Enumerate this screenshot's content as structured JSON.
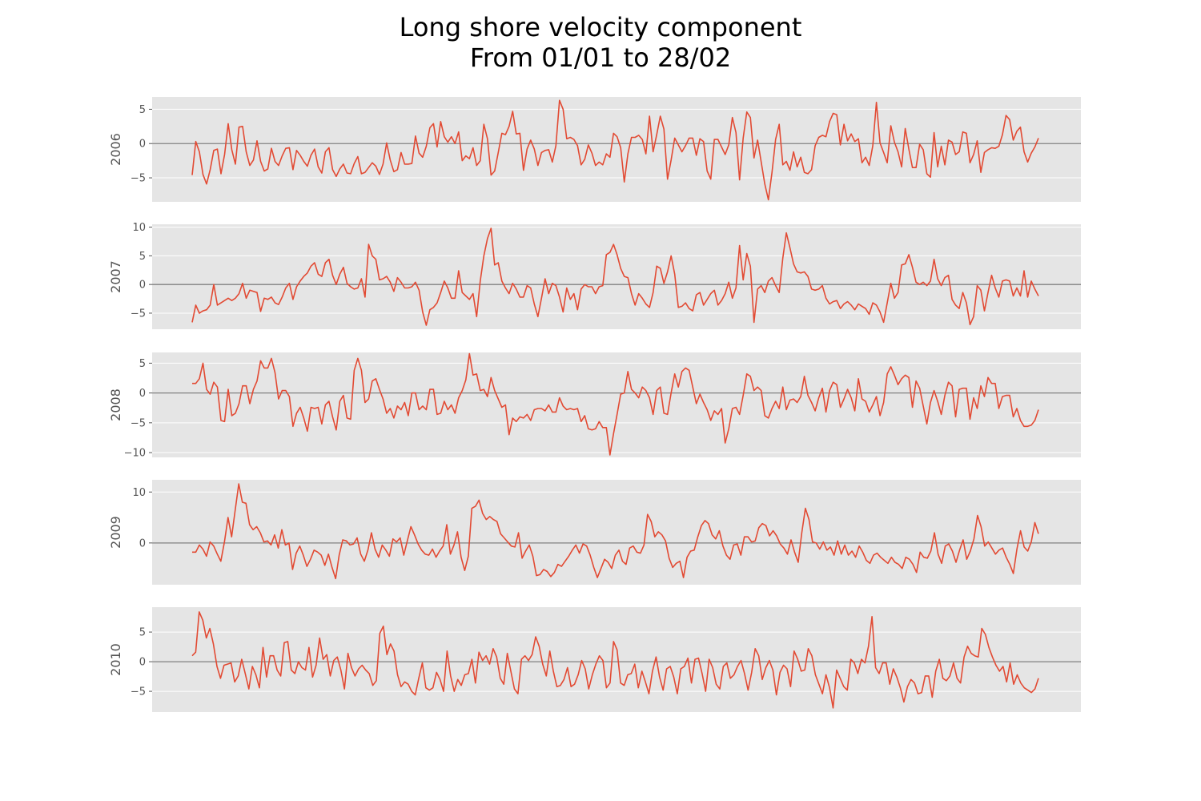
{
  "title": "Long shore velocity component",
  "subtitle": "From 01/01 to 28/02",
  "colors": {
    "line": "#E24A33",
    "panel_background": "#E5E5E5",
    "grid": "#FFFFFF",
    "zero_line": "#808080",
    "tick_text": "#555555"
  },
  "chart_data": [
    {
      "type": "line",
      "ylabel": "2006",
      "ylim": [
        -8.5,
        6.8
      ],
      "yticks": [
        -5,
        0,
        5
      ],
      "ytick_labels": [
        "−5",
        "0",
        "5"
      ],
      "grid": true,
      "values": [
        -4.6,
        0.3,
        -1.2,
        -4.5,
        -5.9,
        -3.8,
        -1.0,
        -0.8,
        -4.4,
        -1.6,
        2.9,
        -0.9,
        -3.0,
        2.4,
        2.5,
        -1.2,
        -3.2,
        -2.4,
        0.4,
        -2.6,
        -4.0,
        -3.7,
        -0.7,
        -2.6,
        -3.2,
        -1.8,
        -0.7,
        -0.6,
        -3.8,
        -1.0,
        -1.7,
        -2.6,
        -3.3,
        -1.7,
        -0.8,
        -3.4,
        -4.3,
        -1.2,
        -0.6,
        -3.8,
        -4.8,
        -3.7,
        -3.0,
        -4.3,
        -4.4,
        -2.9,
        -1.9,
        -4.4,
        -4.2,
        -3.5,
        -2.8,
        -3.3,
        -4.5,
        -3.0,
        0.1,
        -2.4,
        -4.1,
        -3.8,
        -1.3,
        -3.0,
        -3.0,
        -2.9,
        1.1,
        -1.4,
        -2.0,
        -0.4,
        2.3,
        2.9,
        -0.5,
        3.2,
        1.0,
        0.2,
        1.0,
        0.0,
        1.7,
        -2.5,
        -1.8,
        -2.2,
        -0.6,
        -3.2,
        -2.5,
        2.8,
        0.7,
        -4.6,
        -4.0,
        -1.3,
        1.5,
        1.3,
        2.5,
        4.7,
        1.4,
        1.5,
        -3.9,
        -0.8,
        0.5,
        -0.8,
        -3.2,
        -1.3,
        -1.0,
        -0.9,
        -2.7,
        -0.3,
        6.3,
        5.0,
        0.7,
        0.9,
        0.6,
        -0.3,
        -3.1,
        -2.3,
        -0.2,
        -1.4,
        -3.2,
        -2.7,
        -3.1,
        -1.5,
        -2.0,
        1.5,
        1.0,
        -0.6,
        -5.6,
        -1.5,
        0.9,
        0.9,
        1.2,
        0.6,
        -1.5,
        4.0,
        -1.2,
        1.3,
        4.0,
        2.1,
        -5.2,
        -2.4,
        0.8,
        -0.2,
        -1.2,
        -0.3,
        0.8,
        0.8,
        -1.7,
        0.7,
        0.3,
        -4.0,
        -5.2,
        0.6,
        0.6,
        -0.5,
        -1.6,
        -0.2,
        3.8,
        1.6,
        -5.3,
        0.8,
        4.6,
        3.8,
        -2.1,
        0.5,
        -2.7,
        -5.9,
        -8.2,
        -4.2,
        0.6,
        2.8,
        -3.1,
        -2.6,
        -3.9,
        -1.2,
        -3.4,
        -2.0,
        -4.2,
        -4.4,
        -3.8,
        -0.3,
        0.9,
        1.2,
        1.0,
        3.2,
        4.4,
        4.2,
        -0.2,
        2.8,
        0.4,
        1.4,
        0.3,
        0.7,
        -2.8,
        -2.0,
        -3.2,
        -0.3,
        6.0,
        0.1,
        -1.3,
        -2.8,
        2.6,
        0.2,
        -1.2,
        -3.4,
        2.2,
        -0.8,
        -3.5,
        -3.5,
        -0.1,
        -0.9,
        -4.4,
        -4.9,
        1.6,
        -3.4,
        -0.4,
        -3.1,
        0.5,
        0.2,
        -1.6,
        -1.2,
        1.7,
        1.5,
        -2.8,
        -1.6,
        0.4,
        -4.2,
        -1.3,
        -0.9,
        -0.6,
        -0.7,
        -0.4,
        1.3,
        4.1,
        3.5,
        0.5,
        1.8,
        2.4,
        -1.2,
        -2.7,
        -1.4,
        -0.5,
        0.8
      ]
    },
    {
      "type": "line",
      "ylabel": "2007",
      "ylim": [
        -7.8,
        10.5
      ],
      "yticks": [
        -5,
        0,
        5,
        10
      ],
      "ytick_labels": [
        "−5",
        "0",
        "5",
        "10"
      ],
      "grid": true,
      "values": [
        -6.6,
        -3.6,
        -5.0,
        -4.6,
        -4.4,
        -3.6,
        0.0,
        -3.6,
        -3.2,
        -2.8,
        -2.4,
        -2.8,
        -2.4,
        -1.6,
        0.2,
        -2.4,
        -1.0,
        -1.2,
        -1.4,
        -4.7,
        -2.4,
        -2.6,
        -2.2,
        -3.2,
        -3.5,
        -2.2,
        -0.6,
        0.2,
        -2.6,
        -0.4,
        0.6,
        1.4,
        2.0,
        3.2,
        3.8,
        1.8,
        1.4,
        3.8,
        4.4,
        1.6,
        0.0,
        1.8,
        3.0,
        0.2,
        -0.4,
        -0.8,
        -0.6,
        1.0,
        -2.2,
        7.0,
        5.0,
        4.4,
        0.8,
        1.0,
        1.4,
        0.4,
        -1.2,
        1.2,
        0.4,
        -0.6,
        -0.6,
        -0.4,
        0.4,
        -1.0,
        -4.8,
        -7.1,
        -4.4,
        -4.0,
        -3.2,
        -1.4,
        0.6,
        -0.6,
        -2.4,
        -2.4,
        2.4,
        -1.4,
        -2.0,
        -2.6,
        -1.6,
        -5.6,
        0.6,
        5.0,
        8.0,
        9.8,
        3.4,
        3.8,
        0.6,
        -0.6,
        -1.6,
        0.2,
        -0.8,
        -2.2,
        -2.2,
        -0.2,
        -0.6,
        -3.4,
        -5.6,
        -2.4,
        1.0,
        -1.6,
        0.2,
        -0.2,
        -2.2,
        -4.8,
        -0.6,
        -2.6,
        -1.6,
        -4.4,
        -0.8,
        0.0,
        -0.4,
        -0.4,
        -1.6,
        -0.4,
        -0.2,
        5.2,
        5.6,
        7.0,
        5.2,
        2.8,
        1.4,
        1.2,
        -1.6,
        -3.6,
        -1.6,
        -2.4,
        -3.4,
        -4.0,
        -1.4,
        3.2,
        2.8,
        0.2,
        2.2,
        5.0,
        1.8,
        -4.0,
        -3.8,
        -3.2,
        -4.2,
        -4.6,
        -1.8,
        -1.4,
        -3.6,
        -2.6,
        -1.6,
        -1.0,
        -3.6,
        -2.8,
        -1.6,
        0.4,
        -2.4,
        -0.6,
        6.8,
        0.8,
        5.4,
        3.2,
        -6.6,
        -0.8,
        -0.2,
        -1.4,
        0.6,
        1.2,
        -0.2,
        -1.4,
        4.6,
        9.0,
        6.4,
        3.6,
        2.2,
        2.0,
        2.2,
        1.4,
        -0.8,
        -1.0,
        -0.8,
        -0.2,
        -2.4,
        -3.4,
        -3.0,
        -2.8,
        -4.2,
        -3.4,
        -3.0,
        -3.6,
        -4.4,
        -3.4,
        -3.8,
        -4.2,
        -5.2,
        -3.2,
        -3.6,
        -4.8,
        -6.6,
        -3.2,
        0.2,
        -2.4,
        -1.4,
        3.4,
        3.6,
        5.2,
        3.0,
        0.4,
        0.0,
        0.4,
        -0.2,
        0.6,
        4.4,
        1.0,
        -0.2,
        1.2,
        1.6,
        -2.6,
        -3.6,
        -4.2,
        -1.4,
        -3.2,
        -7.0,
        -5.6,
        -0.2,
        -1.0,
        -4.6,
        -1.4,
        1.6,
        -0.6,
        -2.2,
        0.6,
        0.8,
        0.6,
        -2.0,
        -0.6,
        -2.0,
        2.4,
        -2.2,
        0.6,
        -0.8,
        -2.0
      ]
    },
    {
      "type": "line",
      "ylabel": "2008",
      "ylim": [
        -10.8,
        6.8
      ],
      "yticks": [
        -10,
        -5,
        0,
        5
      ],
      "ytick_labels": [
        "−10",
        "−5",
        "0",
        "5"
      ],
      "grid": true,
      "values": [
        1.6,
        1.6,
        2.4,
        5.0,
        0.6,
        -0.2,
        1.8,
        1.0,
        -4.6,
        -4.8,
        0.6,
        -3.8,
        -3.4,
        -1.8,
        1.2,
        1.2,
        -1.8,
        0.6,
        2.0,
        5.4,
        4.2,
        4.2,
        5.8,
        3.4,
        -1.0,
        0.4,
        0.4,
        -0.6,
        -5.6,
        -3.4,
        -2.4,
        -4.2,
        -6.4,
        -2.4,
        -2.6,
        -2.4,
        -5.2,
        -2.0,
        -1.4,
        -4.0,
        -6.2,
        -1.4,
        -0.4,
        -4.2,
        -4.4,
        3.8,
        5.8,
        3.8,
        -1.6,
        -1.0,
        2.0,
        2.4,
        0.6,
        -1.0,
        -3.4,
        -2.6,
        -4.2,
        -2.2,
        -2.8,
        -1.6,
        -3.8,
        0.0,
        0.0,
        -2.8,
        -2.2,
        -2.8,
        0.6,
        0.6,
        -3.6,
        -3.4,
        -1.4,
        -2.8,
        -2.0,
        -3.4,
        -0.8,
        0.4,
        2.2,
        6.6,
        3.0,
        3.2,
        0.4,
        0.6,
        -0.6,
        2.6,
        0.4,
        -1.0,
        -2.4,
        -2.0,
        -7.0,
        -4.2,
        -4.8,
        -4.0,
        -4.2,
        -3.6,
        -4.6,
        -2.8,
        -2.6,
        -2.6,
        -3.0,
        -2.0,
        -3.2,
        -3.2,
        -0.8,
        -2.2,
        -2.8,
        -2.6,
        -2.8,
        -2.6,
        -4.8,
        -3.8,
        -6.0,
        -6.2,
        -6.0,
        -4.8,
        -5.8,
        -5.8,
        -10.4,
        -6.8,
        -3.6,
        -0.2,
        0.0,
        3.6,
        0.6,
        0.0,
        -0.8,
        1.0,
        0.4,
        -0.8,
        -3.6,
        0.4,
        1.0,
        -3.4,
        -3.6,
        0.0,
        3.2,
        1.0,
        3.6,
        4.2,
        3.8,
        1.0,
        -1.8,
        -0.2,
        -1.6,
        -2.8,
        -4.6,
        -3.0,
        -3.6,
        -2.6,
        -8.4,
        -6.0,
        -2.6,
        -2.4,
        -3.6,
        -0.4,
        3.2,
        2.8,
        0.4,
        1.0,
        0.4,
        -3.8,
        -4.2,
        -2.6,
        -1.4,
        -2.6,
        1.0,
        -2.8,
        -1.2,
        -1.0,
        -1.6,
        -0.6,
        2.8,
        -0.4,
        -1.6,
        -3.0,
        -0.8,
        0.8,
        -3.2,
        0.4,
        1.8,
        1.4,
        -2.4,
        -1.0,
        0.6,
        -0.8,
        -3.0,
        2.4,
        -1.0,
        -1.4,
        -3.2,
        -2.0,
        -0.6,
        -3.8,
        -1.6,
        3.2,
        4.4,
        3.0,
        1.4,
        2.4,
        3.0,
        2.6,
        -2.4,
        2.0,
        0.8,
        -2.2,
        -5.2,
        -1.6,
        0.4,
        -1.4,
        -3.6,
        -0.4,
        1.8,
        1.2,
        -4.0,
        0.6,
        0.8,
        0.8,
        -4.4,
        -0.8,
        -2.6,
        1.2,
        -0.6,
        2.6,
        1.6,
        1.6,
        -2.6,
        -0.6,
        -0.4,
        -0.4,
        -4.0,
        -2.6,
        -4.6,
        -5.6,
        -5.6,
        -5.4,
        -4.6,
        -2.8
      ]
    },
    {
      "type": "line",
      "ylabel": "2009",
      "ylim": [
        -8.2,
        12.4
      ],
      "yticks": [
        0,
        10
      ],
      "ytick_labels": [
        "0",
        "10"
      ],
      "grid": true,
      "values": [
        -1.8,
        -1.8,
        -0.4,
        -1.2,
        -2.6,
        0.2,
        -0.6,
        -2.2,
        -3.6,
        0.2,
        5.0,
        1.2,
        6.4,
        11.6,
        8.0,
        7.8,
        3.6,
        2.6,
        3.2,
        2.0,
        0.2,
        0.4,
        -0.4,
        1.6,
        -1.0,
        2.6,
        -0.4,
        0.0,
        -5.2,
        -2.0,
        -0.6,
        -2.4,
        -4.6,
        -3.2,
        -1.4,
        -1.8,
        -2.4,
        -4.4,
        -2.2,
        -4.8,
        -7.0,
        -2.4,
        0.6,
        0.4,
        -0.4,
        -0.2,
        1.0,
        -2.2,
        -3.6,
        -1.4,
        2.0,
        -1.2,
        -2.8,
        -0.4,
        -1.4,
        -2.6,
        0.8,
        0.2,
        1.0,
        -2.4,
        0.4,
        3.2,
        1.6,
        -0.2,
        -1.4,
        -2.2,
        -2.4,
        -1.2,
        -2.8,
        -1.6,
        -0.6,
        3.6,
        -2.2,
        -0.4,
        2.2,
        -2.8,
        -5.4,
        -2.6,
        6.8,
        7.2,
        8.4,
        5.8,
        4.6,
        5.2,
        4.6,
        4.2,
        1.8,
        1.0,
        0.2,
        -0.6,
        -0.8,
        2.0,
        -3.0,
        -1.6,
        -0.4,
        -2.6,
        -6.4,
        -6.2,
        -5.2,
        -5.6,
        -6.6,
        -5.8,
        -4.2,
        -4.6,
        -3.6,
        -2.6,
        -1.4,
        -0.4,
        -2.0,
        -0.2,
        -0.6,
        -2.4,
        -4.8,
        -6.8,
        -5.0,
        -3.2,
        -3.8,
        -5.0,
        -2.4,
        -1.4,
        -3.6,
        -4.2,
        -1.0,
        -0.6,
        -1.8,
        -2.0,
        -0.4,
        5.6,
        4.2,
        1.2,
        2.2,
        1.6,
        0.4,
        -3.0,
        -4.8,
        -4.0,
        -3.6,
        -6.8,
        -2.8,
        -1.6,
        -1.4,
        1.2,
        3.4,
        4.4,
        3.8,
        1.6,
        0.8,
        2.4,
        -0.6,
        -2.4,
        -3.2,
        -0.4,
        -0.2,
        -2.4,
        1.2,
        1.2,
        0.2,
        0.4,
        3.0,
        3.8,
        3.4,
        1.4,
        2.4,
        1.4,
        -0.2,
        -1.0,
        -2.2,
        0.6,
        -1.8,
        -3.8,
        2.0,
        6.8,
        4.6,
        0.2,
        0.0,
        -1.2,
        0.2,
        -1.4,
        -0.8,
        -2.4,
        0.4,
        -2.2,
        -0.4,
        -2.4,
        -1.6,
        -2.8,
        -0.6,
        -1.8,
        -3.4,
        -4.0,
        -2.4,
        -2.0,
        -2.8,
        -3.4,
        -4.0,
        -2.8,
        -3.8,
        -4.2,
        -5.0,
        -2.8,
        -3.2,
        -4.2,
        -5.8,
        -1.8,
        -2.8,
        -3.0,
        -1.6,
        2.0,
        -2.2,
        -4.0,
        -0.6,
        -0.2,
        -1.6,
        -3.8,
        -1.4,
        0.6,
        -3.2,
        -1.6,
        0.8,
        5.4,
        3.2,
        -0.6,
        0.2,
        -1.0,
        -2.2,
        -1.4,
        -1.0,
        -2.8,
        -4.2,
        -6.0,
        -1.2,
        2.4,
        -0.8,
        -1.6,
        0.2,
        4.0,
        1.8
      ]
    },
    {
      "type": "line",
      "ylabel": "2010",
      "ylim": [
        -8.5,
        9.2
      ],
      "yticks": [
        -5,
        0,
        5
      ],
      "ytick_labels": [
        "−5",
        "0",
        "5"
      ],
      "grid": true,
      "values": [
        1.0,
        1.6,
        8.4,
        7.0,
        4.0,
        5.6,
        3.0,
        -0.8,
        -2.8,
        -0.6,
        -0.4,
        -0.2,
        -3.4,
        -2.4,
        0.4,
        -2.0,
        -4.6,
        -0.8,
        -2.2,
        -4.4,
        2.4,
        -2.6,
        1.0,
        1.0,
        -1.4,
        -2.4,
        3.2,
        3.4,
        -1.4,
        -2.0,
        0.0,
        -1.0,
        -1.4,
        2.4,
        -2.6,
        -0.6,
        4.0,
        0.4,
        1.2,
        -2.4,
        0.2,
        0.8,
        -1.4,
        -4.6,
        1.4,
        -1.0,
        -2.4,
        -1.2,
        -0.6,
        -1.4,
        -2.0,
        -4.0,
        -3.2,
        4.8,
        6.0,
        1.2,
        3.0,
        1.8,
        -2.2,
        -4.2,
        -3.4,
        -3.8,
        -5.0,
        -5.6,
        -2.8,
        -0.2,
        -4.4,
        -4.8,
        -4.4,
        -1.8,
        -3.0,
        -5.0,
        1.8,
        -2.4,
        -5.0,
        -3.0,
        -4.0,
        -2.2,
        -2.0,
        0.4,
        -3.6,
        1.6,
        0.2,
        1.0,
        -0.4,
        2.2,
        0.8,
        -2.8,
        -3.8,
        1.4,
        -1.6,
        -4.6,
        -5.4,
        0.4,
        1.0,
        0.2,
        1.2,
        4.2,
        2.6,
        -0.4,
        -2.4,
        1.8,
        -1.6,
        -4.2,
        -4.0,
        -3.0,
        -1.0,
        -4.2,
        -3.8,
        -2.2,
        0.2,
        -1.2,
        -4.6,
        -2.2,
        -0.4,
        1.0,
        0.2,
        -4.4,
        -3.6,
        3.4,
        2.0,
        -3.6,
        -4.0,
        -2.2,
        -2.0,
        -0.4,
        -4.4,
        -1.6,
        -3.4,
        -5.4,
        -1.6,
        0.8,
        -2.6,
        -4.8,
        -1.2,
        -0.8,
        -2.6,
        -5.4,
        -1.2,
        -0.8,
        0.6,
        -3.6,
        0.4,
        0.6,
        -2.0,
        -5.0,
        0.4,
        -1.0,
        -3.8,
        -4.6,
        -0.8,
        -0.2,
        -2.8,
        -2.2,
        -0.8,
        0.2,
        -2.0,
        -4.8,
        -1.8,
        2.2,
        1.0,
        -3.0,
        -1.0,
        0.2,
        -1.4,
        -5.6,
        -1.8,
        -0.6,
        -1.2,
        -4.2,
        1.8,
        0.4,
        -1.6,
        -1.4,
        2.2,
        1.0,
        -2.2,
        -3.8,
        -5.4,
        -2.2,
        -4.4,
        -7.8,
        -1.4,
        -2.8,
        -4.2,
        -4.8,
        0.4,
        -0.2,
        -2.0,
        0.4,
        -0.2,
        2.6,
        7.6,
        -1.0,
        -2.0,
        -0.2,
        -0.2,
        -3.8,
        -1.2,
        -2.6,
        -4.4,
        -6.8,
        -4.2,
        -3.0,
        -3.6,
        -5.4,
        -5.2,
        -2.4,
        -2.4,
        -6.0,
        -1.6,
        0.4,
        -2.8,
        -3.2,
        -2.4,
        -0.2,
        -2.8,
        -3.6,
        0.8,
        2.6,
        1.4,
        1.0,
        0.8,
        5.6,
        4.6,
        2.4,
        0.8,
        -0.6,
        -1.6,
        -0.8,
        -3.4,
        -0.2,
        -3.8,
        -2.2,
        -3.6,
        -4.4,
        -4.8,
        -5.2,
        -4.6,
        -2.8
      ]
    }
  ]
}
